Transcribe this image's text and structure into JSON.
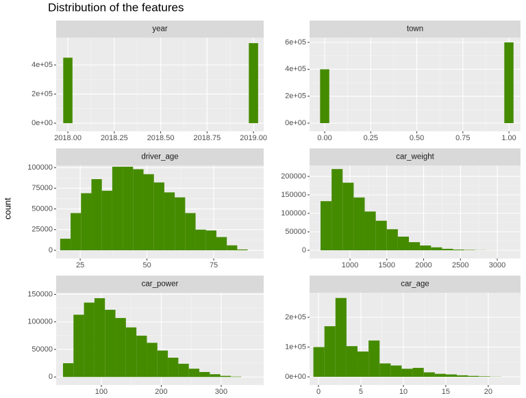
{
  "title": "Distribution of the features",
  "y_label": "count",
  "chart_data": [
    {
      "type": "histogram",
      "title": "year",
      "color": "#458b00",
      "grid": true,
      "bins": [
        2017.975,
        2018.025,
        2018.075,
        2018.125,
        2018.175,
        2018.225,
        2018.275,
        2018.325,
        2018.375,
        2018.425,
        2018.475,
        2018.525,
        2018.575,
        2018.625,
        2018.675,
        2018.725,
        2018.775,
        2018.825,
        2018.875,
        2018.925,
        2018.975,
        2019.025
      ],
      "values": [
        450000,
        0,
        0,
        0,
        0,
        0,
        0,
        0,
        0,
        0,
        0,
        0,
        0,
        0,
        0,
        0,
        0,
        0,
        0,
        0,
        550000
      ],
      "xlim": [
        2017.937,
        2019.055
      ],
      "ylim": [
        -56000,
        588000
      ],
      "xticks": [
        {
          "value": 2018,
          "label": "2018.00"
        },
        {
          "value": 2018.25,
          "label": "2018.25"
        },
        {
          "value": 2018.5,
          "label": "2018.50"
        },
        {
          "value": 2018.75,
          "label": "2018.75"
        },
        {
          "value": 2019,
          "label": "2019.00"
        }
      ],
      "yticks": [
        {
          "value": 0,
          "label": "0e+00"
        },
        {
          "value": 200000,
          "label": "2e+05"
        },
        {
          "value": 400000,
          "label": "4e+05"
        }
      ]
    },
    {
      "type": "histogram",
      "title": "town",
      "color": "#458b00",
      "grid": true,
      "bins": [
        -0.025,
        0.025,
        0.075,
        0.125,
        0.175,
        0.225,
        0.275,
        0.325,
        0.375,
        0.425,
        0.475,
        0.525,
        0.575,
        0.625,
        0.675,
        0.725,
        0.775,
        0.825,
        0.875,
        0.925,
        0.975,
        1.025
      ],
      "values": [
        400000,
        0,
        0,
        0,
        0,
        0,
        0,
        0,
        0,
        0,
        0,
        0,
        0,
        0,
        0,
        0,
        0,
        0,
        0,
        0,
        600000
      ],
      "xlim": [
        -0.082,
        1.063
      ],
      "ylim": [
        -61000,
        635600
      ],
      "xticks": [
        {
          "value": 0,
          "label": "0.00"
        },
        {
          "value": 0.25,
          "label": "0.25"
        },
        {
          "value": 0.5,
          "label": "0.50"
        },
        {
          "value": 0.75,
          "label": "0.75"
        },
        {
          "value": 1,
          "label": "1.00"
        }
      ],
      "yticks": [
        {
          "value": 0,
          "label": "0e+00"
        },
        {
          "value": 200000,
          "label": "2e+05"
        },
        {
          "value": 400000,
          "label": "4e+05"
        },
        {
          "value": 600000,
          "label": "6e+05"
        }
      ]
    },
    {
      "type": "histogram",
      "title": "driver_age",
      "color": "#458b00",
      "grid": true,
      "bins": [
        17.5,
        21.4,
        25.3,
        29.2,
        33.1,
        37,
        40.9,
        44.8,
        48.7,
        52.6,
        56.5,
        60.4,
        64.3,
        68.2,
        72.1,
        76,
        79.9,
        83.8,
        87.7
      ],
      "values": [
        14000,
        45000,
        69000,
        86000,
        72000,
        101000,
        101000,
        98000,
        92000,
        82000,
        70000,
        64000,
        45000,
        25000,
        24000,
        16000,
        6000,
        1000
      ],
      "xlim": [
        16,
        93.7
      ],
      "ylim": [
        -9900,
        102500
      ],
      "xticks": [
        25,
        50,
        75
      ],
      "yticks": [
        0,
        25000,
        50000,
        75000,
        100000
      ]
    },
    {
      "type": "histogram",
      "title": "car_weight",
      "color": "#458b00",
      "grid": true,
      "bins": [
        600,
        750,
        900,
        1050,
        1200,
        1350,
        1500,
        1650,
        1800,
        1950,
        2100,
        2250,
        2400,
        2550,
        2700,
        2850,
        3000,
        3150
      ],
      "values": [
        133000,
        220000,
        183000,
        143000,
        105000,
        80000,
        57000,
        37000,
        22000,
        13000,
        8000,
        4000,
        2000,
        1000,
        300,
        100,
        50
      ],
      "xlim": [
        451,
        3316
      ],
      "ylim": [
        -22200,
        229600
      ],
      "xticks": [
        1000,
        1500,
        2000,
        2500,
        3000
      ],
      "yticks": [
        0,
        50000,
        100000,
        150000,
        200000
      ]
    },
    {
      "type": "histogram",
      "title": "car_power",
      "color": "#458b00",
      "grid": true,
      "bins": [
        36,
        53.5,
        71,
        88.5,
        106,
        123.5,
        141,
        158.5,
        176,
        193.5,
        211,
        228.5,
        246,
        263.5,
        281,
        298.5,
        316,
        333.5
      ],
      "values": [
        25000,
        113000,
        135000,
        143000,
        122000,
        107000,
        90000,
        75000,
        62000,
        48000,
        35000,
        24000,
        15000,
        9000,
        5000,
        2000,
        700
      ],
      "xlim": [
        24.6,
        370.9
      ],
      "ylim": [
        -14600,
        153000
      ],
      "xticks": [
        100,
        200,
        300
      ],
      "yticks": [
        0,
        50000,
        100000,
        150000
      ]
    },
    {
      "type": "histogram",
      "title": "car_age",
      "color": "#458b00",
      "grid": true,
      "bins": [
        -0.6,
        0.7,
        2,
        3.3,
        4.6,
        5.9,
        7.2,
        8.5,
        9.8,
        11.1,
        12.4,
        13.7,
        15,
        16.3,
        17.6,
        18.9,
        20.2,
        21.5
      ],
      "values": [
        100000,
        170000,
        265000,
        103000,
        85000,
        122000,
        45000,
        38000,
        27000,
        30000,
        15000,
        10000,
        8000,
        5000,
        3000,
        1500,
        500
      ],
      "xlim": [
        -1.05,
        23.8
      ],
      "ylim": [
        -27600,
        282800
      ],
      "xticks": [
        0,
        5,
        10,
        15,
        20
      ],
      "yticks": [
        {
          "value": 0,
          "label": "0e+00"
        },
        {
          "value": 100000,
          "label": "1e+05"
        },
        {
          "value": 200000,
          "label": "2e+05"
        }
      ]
    }
  ]
}
